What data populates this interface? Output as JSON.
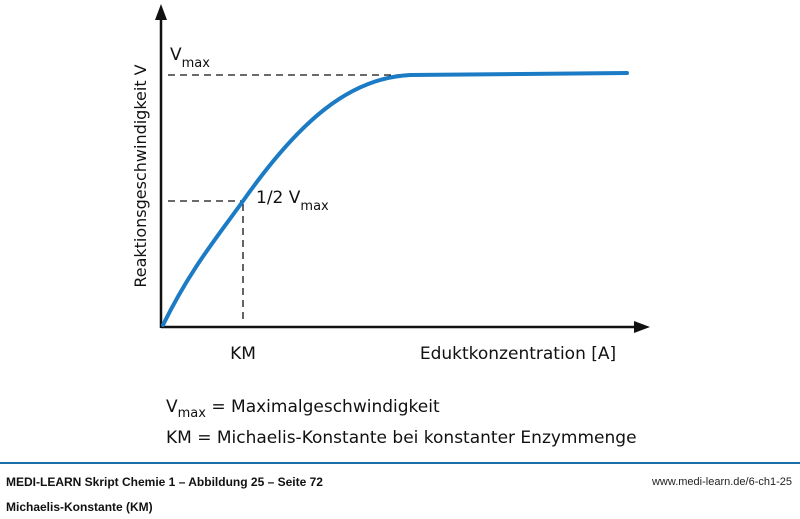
{
  "diagram": {
    "y_axis_label": "Reaktionsgeschwindigkeit V",
    "x_axis_label": "Eduktkonzentration [A]",
    "km_label": "KM",
    "vmax_label_main": "V",
    "vmax_label_sub": "max",
    "half_vmax_label_main": "1/2 V",
    "half_vmax_label_sub": "max",
    "curve_color": "#1b7bc4"
  },
  "legend": {
    "line1_main": "V",
    "line1_sub": "max",
    "line1_rest": " = Maximalgeschwindigkeit",
    "line2": "KM = Michaelis-Konstante bei konstanter Enzymmenge"
  },
  "footer": {
    "source": "MEDI-LEARN Skript Chemie 1 – Abbildung 25 – Seite 72",
    "caption": "Michaelis-Konstante (KM)",
    "url": "www.medi-learn.de/6-ch1-25",
    "rule_color": "#1a6fa8"
  }
}
